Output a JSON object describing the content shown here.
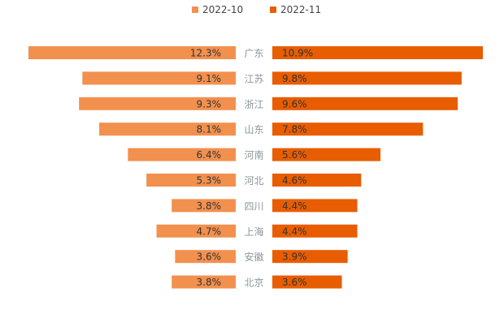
{
  "chart_data": {
    "type": "bar",
    "orientation": "butterfly-horizontal",
    "title": "",
    "categories": [
      "广东",
      "江苏",
      "浙江",
      "山东",
      "河南",
      "河北",
      "四川",
      "上海",
      "安徽",
      "北京"
    ],
    "series": [
      {
        "name": "2022-10",
        "color": "#F2904E",
        "side": "left",
        "values": [
          12.3,
          9.1,
          9.3,
          8.1,
          6.4,
          5.3,
          3.8,
          4.7,
          3.6,
          3.8
        ],
        "labels": [
          "12.3%",
          "9.1%",
          "9.3%",
          "8.1%",
          "6.4%",
          "5.3%",
          "3.8%",
          "4.7%",
          "3.6%",
          "3.8%"
        ]
      },
      {
        "name": "2022-11",
        "color": "#E85D00",
        "side": "right",
        "values": [
          10.9,
          9.8,
          9.6,
          7.8,
          5.6,
          4.6,
          4.4,
          4.4,
          3.9,
          3.6
        ],
        "labels": [
          "10.9%",
          "9.8%",
          "9.6%",
          "7.8%",
          "5.6%",
          "4.6%",
          "4.4%",
          "4.4%",
          "3.9%",
          "3.6%"
        ]
      }
    ],
    "unit": "%",
    "legend": "top-center",
    "grid": false
  }
}
